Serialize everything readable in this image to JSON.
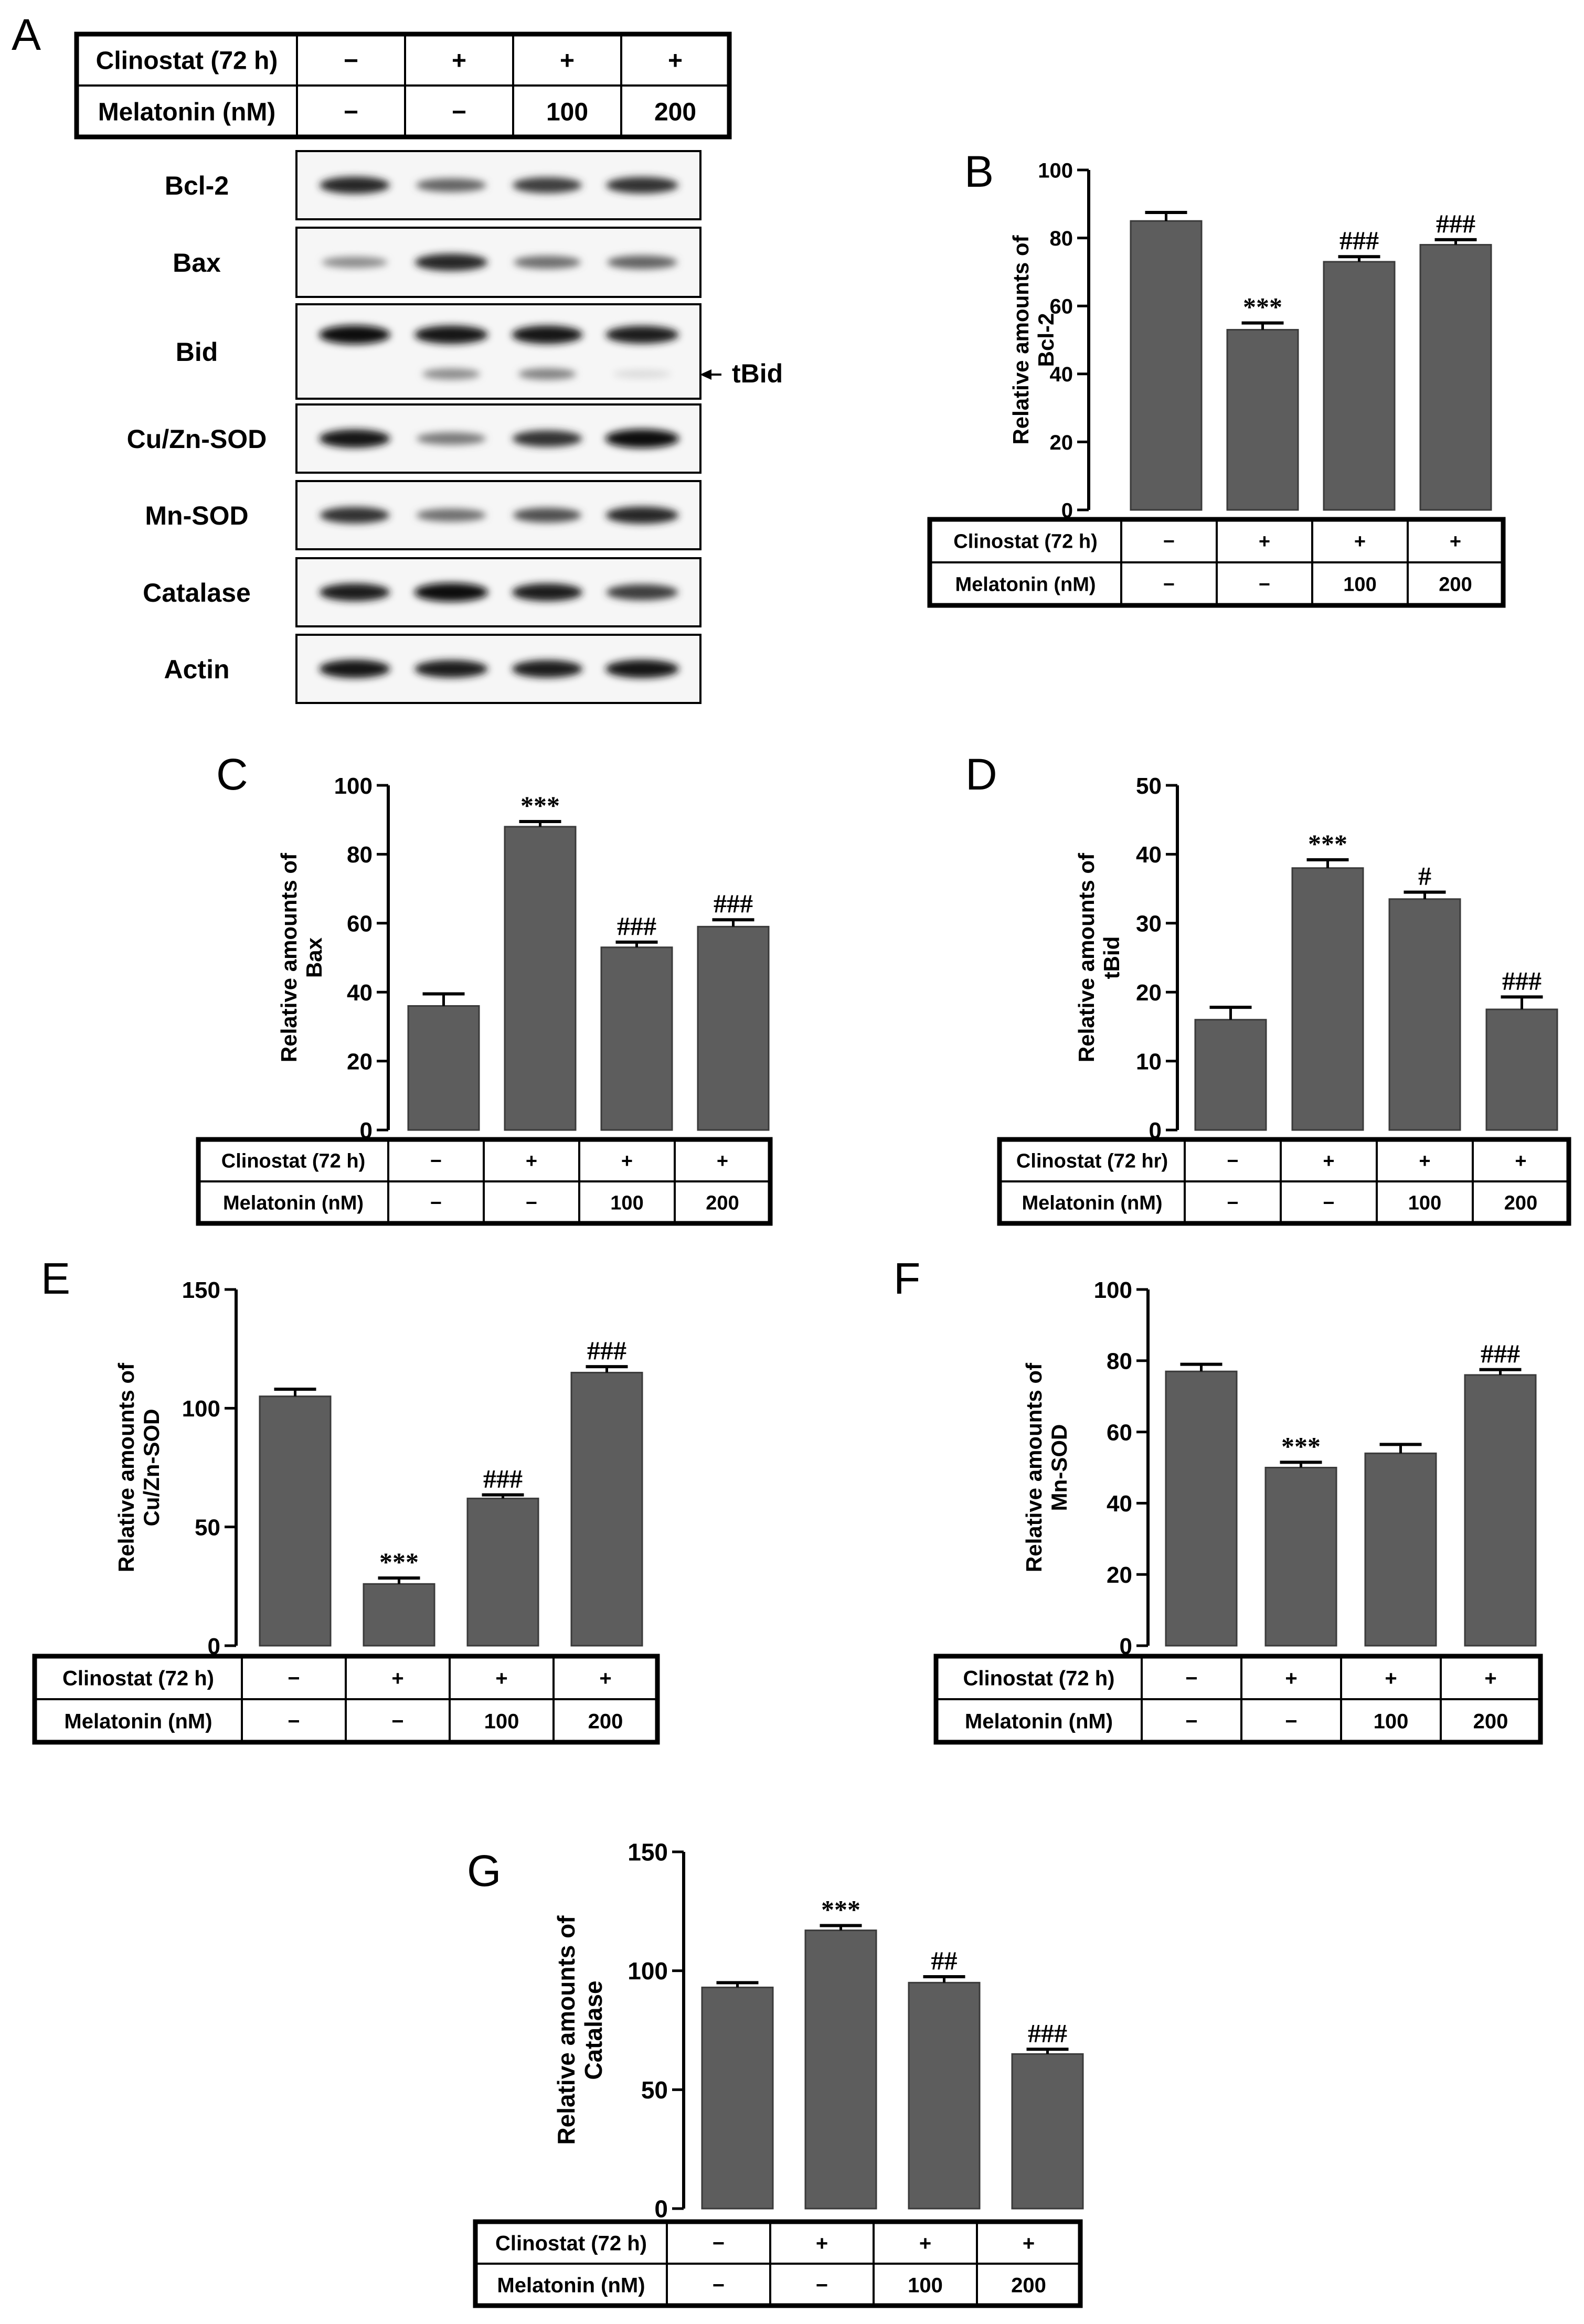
{
  "treatment_rows": [
    {
      "label": "Clinostat (72 h)",
      "values": [
        "−",
        "+",
        "+",
        "+"
      ]
    },
    {
      "label": "Melatonin (nM)",
      "values": [
        "−",
        "−",
        "100",
        "200"
      ]
    }
  ],
  "panel_a": {
    "label": "A",
    "blot_rows": [
      "Bcl-2",
      "Bax",
      "Bid",
      "Cu/Zn-SOD",
      "Mn-SOD",
      "Catalase",
      "Actin"
    ],
    "band_intensity": [
      [
        0.85,
        0.55,
        0.75,
        0.8
      ],
      [
        0.35,
        0.85,
        0.5,
        0.55
      ],
      [
        1.0,
        0.95,
        0.95,
        0.9
      ],
      [
        0.95,
        0.45,
        0.8,
        1.0
      ],
      [
        0.8,
        0.5,
        0.65,
        0.85
      ],
      [
        0.9,
        1.0,
        0.9,
        0.75
      ],
      [
        0.95,
        0.9,
        0.9,
        0.95
      ]
    ],
    "tbid_intensity": [
      0.0,
      0.45,
      0.5,
      0.05
    ],
    "tbid_annotation": "tBid"
  },
  "chart_data": [
    {
      "panel": "B",
      "type": "bar",
      "categories": [
        "1",
        "2",
        "3",
        "4"
      ],
      "values": [
        85,
        53,
        73,
        78
      ],
      "errors": [
        2.5,
        2,
        1.5,
        1.5
      ],
      "sig": [
        "",
        "***",
        "###",
        "###"
      ],
      "ylabel_lines": [
        "Relative amounts of",
        "Bcl-2"
      ],
      "ylim": [
        0,
        100
      ],
      "yticks": [
        0,
        20,
        40,
        60,
        80,
        100
      ],
      "rows": [
        {
          "label": "Clinostat (72 h)",
          "values": [
            "−",
            "+",
            "+",
            "+"
          ]
        },
        {
          "label": "Melatonin (nM)",
          "values": [
            "−",
            "−",
            "100",
            "200"
          ]
        }
      ]
    },
    {
      "panel": "C",
      "type": "bar",
      "categories": [
        "1",
        "2",
        "3",
        "4"
      ],
      "values": [
        36,
        88,
        53,
        59
      ],
      "errors": [
        3.5,
        1.5,
        1.5,
        2
      ],
      "sig": [
        "",
        "***",
        "###",
        "###"
      ],
      "ylabel_lines": [
        "Relative amounts of",
        "Bax"
      ],
      "ylim": [
        0,
        100
      ],
      "yticks": [
        0,
        20,
        40,
        60,
        80,
        100
      ],
      "rows": [
        {
          "label": "Clinostat (72 h)",
          "values": [
            "−",
            "+",
            "+",
            "+"
          ]
        },
        {
          "label": "Melatonin (nM)",
          "values": [
            "−",
            "−",
            "100",
            "200"
          ]
        }
      ]
    },
    {
      "panel": "D",
      "type": "bar",
      "categories": [
        "1",
        "2",
        "3",
        "4"
      ],
      "values": [
        16,
        38,
        33.5,
        17.5
      ],
      "errors": [
        1.8,
        1.2,
        1.0,
        1.8
      ],
      "sig": [
        "",
        "***",
        "#",
        "###"
      ],
      "ylabel_lines": [
        "Relative amounts of",
        "tBid"
      ],
      "ylim": [
        0,
        50
      ],
      "yticks": [
        0,
        10,
        20,
        30,
        40,
        50
      ],
      "rows": [
        {
          "label": "Clinostat (72 hr)",
          "values": [
            "−",
            "+",
            "+",
            "+"
          ]
        },
        {
          "label": "Melatonin (nM)",
          "values": [
            "−",
            "−",
            "100",
            "200"
          ]
        }
      ]
    },
    {
      "panel": "E",
      "type": "bar",
      "categories": [
        "1",
        "2",
        "3",
        "4"
      ],
      "values": [
        105,
        26,
        62,
        115
      ],
      "errors": [
        3,
        2.5,
        1.5,
        2.5
      ],
      "sig": [
        "",
        "***",
        "###",
        "###"
      ],
      "ylabel_lines": [
        "Relative amounts of",
        "Cu/Zn-SOD"
      ],
      "ylim": [
        0,
        150
      ],
      "yticks": [
        0,
        50,
        100,
        150
      ],
      "rows": [
        {
          "label": "Clinostat (72 h)",
          "values": [
            "−",
            "+",
            "+",
            "+"
          ]
        },
        {
          "label": "Melatonin (nM)",
          "values": [
            "−",
            "−",
            "100",
            "200"
          ]
        }
      ]
    },
    {
      "panel": "F",
      "type": "bar",
      "categories": [
        "1",
        "2",
        "3",
        "4"
      ],
      "values": [
        77,
        50,
        54,
        76
      ],
      "errors": [
        2,
        1.5,
        2.5,
        1.5
      ],
      "sig": [
        "",
        "***",
        "",
        "###"
      ],
      "ylabel_lines": [
        "Relative amounts of",
        "Mn-SOD"
      ],
      "ylim": [
        0,
        100
      ],
      "yticks": [
        0,
        20,
        40,
        60,
        80,
        100
      ],
      "rows": [
        {
          "label": "Clinostat (72 h)",
          "values": [
            "−",
            "+",
            "+",
            "+"
          ]
        },
        {
          "label": "Melatonin (nM)",
          "values": [
            "−",
            "−",
            "100",
            "200"
          ]
        }
      ]
    },
    {
      "panel": "G",
      "type": "bar",
      "categories": [
        "1",
        "2",
        "3",
        "4"
      ],
      "values": [
        93,
        117,
        95,
        65
      ],
      "errors": [
        2,
        2,
        2.5,
        2
      ],
      "sig": [
        "",
        "***",
        "##",
        "###"
      ],
      "ylabel_lines": [
        "Relative amounts of",
        "Catalase"
      ],
      "ylim": [
        0,
        150
      ],
      "yticks": [
        0,
        50,
        100,
        150
      ],
      "rows": [
        {
          "label": "Clinostat (72 h)",
          "values": [
            "−",
            "+",
            "+",
            "+"
          ]
        },
        {
          "label": "Melatonin (nM)",
          "values": [
            "−",
            "−",
            "100",
            "200"
          ]
        }
      ]
    }
  ]
}
